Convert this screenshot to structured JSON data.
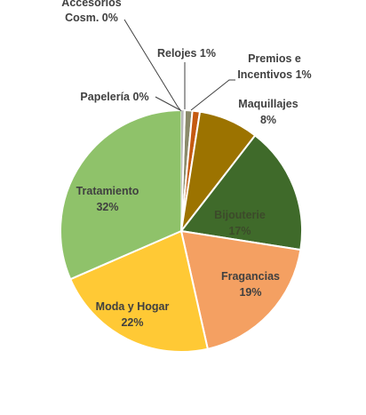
{
  "chart_data": {
    "type": "pie",
    "title": "",
    "slices": [
      {
        "name": "Relojes",
        "value": 1,
        "label": "Relojes 1%",
        "color": "#8a8a6a"
      },
      {
        "name": "Premios e Incentivos",
        "value": 1,
        "label": "Premios e Incentivos 1%",
        "color": "#c55a11"
      },
      {
        "name": "Maquillajes",
        "value": 8,
        "label": "Maquillajes 8%",
        "color": "#9c7300"
      },
      {
        "name": "Bijouterie",
        "value": 17,
        "label": "Bijouterie 17%",
        "color": "#3f6a2a"
      },
      {
        "name": "Fragancias",
        "value": 19,
        "label": "Fragancias 19%",
        "color": "#f4a062"
      },
      {
        "name": "Moda y Hogar",
        "value": 22,
        "label": "Moda y Hogar 22%",
        "color": "#ffc935"
      },
      {
        "name": "Tratamiento",
        "value": 32,
        "label": "Tratamiento 32%",
        "color": "#8fc26a"
      },
      {
        "name": "Papelería",
        "value": 0,
        "label": "Papelería 0%",
        "color": "#cfe3b8"
      },
      {
        "name": "Accesorios Cosm.",
        "value": 0,
        "label": "Accesorios Cosm. 0%",
        "color": "#b8b8b8"
      }
    ],
    "legend": "none"
  },
  "labels": {
    "relojes": "Relojes 1%",
    "premios_l1": "Premios e",
    "premios_l2": "Incentivos 1%",
    "maquillajes_l1": "Maquillajes",
    "maquillajes_l2": "8%",
    "bijouterie_l1": "Bijouterie",
    "bijouterie_l2": "17%",
    "fragancias_l1": "Fragancias",
    "fragancias_l2": "19%",
    "moda_l1": "Moda y Hogar",
    "moda_l2": "22%",
    "tratamiento_l1": "Tratamiento",
    "tratamiento_l2": "32%",
    "papeleria": "Papelería 0%",
    "accesorios_l1": "Accesorios",
    "accesorios_l2": "Cosm. 0%"
  }
}
